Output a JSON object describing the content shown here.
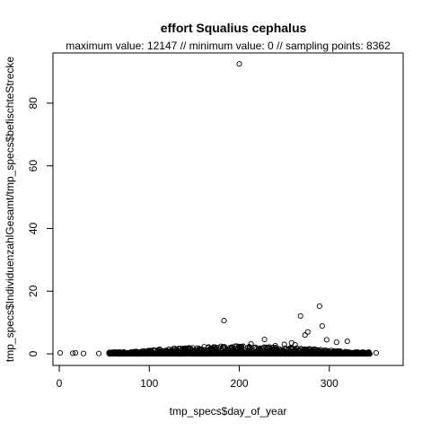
{
  "chart_data": {
    "type": "scatter",
    "title": "effort Squalius cephalus",
    "subtitle": "maximum value: 12147  //  minimum value: 0  // sampling points: 8362",
    "xlabel": "tmp_specs$day_of_year",
    "ylabel": "tmp_specs$IndividuenzahlGesamt/tmp_specs$befischteStrecke",
    "xlim": [
      -7,
      382
    ],
    "ylim": [
      -3.7,
      96
    ],
    "x_ticks": [
      0,
      100,
      200,
      300
    ],
    "y_ticks": [
      0,
      20,
      40,
      60,
      80
    ],
    "grid": false,
    "legend": "none",
    "marker": "open-circle",
    "colors": {
      "points": "#000000",
      "axes": "#000000",
      "background": "#ffffff"
    },
    "notable_points": [
      {
        "x": 200,
        "y": 92.5
      },
      {
        "x": 289,
        "y": 15.2
      },
      {
        "x": 268,
        "y": 12.1
      },
      {
        "x": 183,
        "y": 10.6
      },
      {
        "x": 292,
        "y": 8.9
      },
      {
        "x": 276,
        "y": 7.0
      },
      {
        "x": 273,
        "y": 6.0
      },
      {
        "x": 297,
        "y": 4.5
      },
      {
        "x": 228,
        "y": 4.6
      },
      {
        "x": 308,
        "y": 3.7
      },
      {
        "x": 320,
        "y": 4.0
      },
      {
        "x": 258,
        "y": 3.5
      },
      {
        "x": 250,
        "y": 3.0
      },
      {
        "x": 262,
        "y": 2.9
      },
      {
        "x": 213,
        "y": 3.2
      },
      {
        "x": 240,
        "y": 2.6
      },
      {
        "x": 1,
        "y": 0.3
      },
      {
        "x": 15,
        "y": 0.2
      },
      {
        "x": 18,
        "y": 0.3
      },
      {
        "x": 27,
        "y": 0.1
      },
      {
        "x": 44,
        "y": 0.1
      },
      {
        "x": 352,
        "y": 0.3
      }
    ],
    "dense_band": {
      "x_range": [
        55,
        345
      ],
      "y_range": [
        0,
        2.5
      ]
    }
  }
}
